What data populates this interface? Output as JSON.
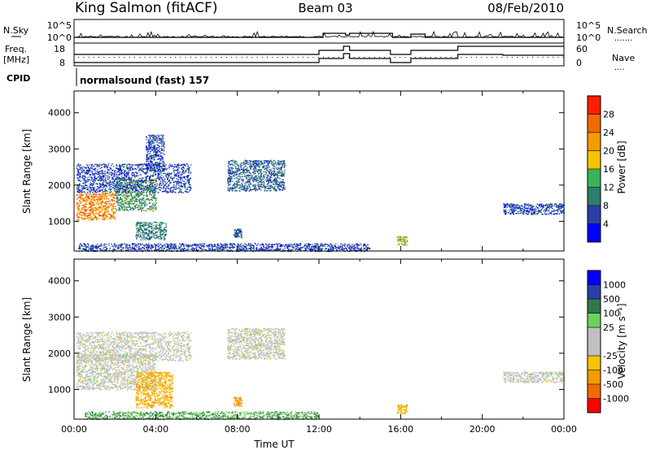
{
  "header": {
    "station": "King Salmon (fitACF)",
    "beam": "Beam 03",
    "date": "08/Feb/2010"
  },
  "top_panel": {
    "left_labels": {
      "nsky": "N.Sky",
      "freq_line1": "Freq.",
      "freq_line2": "[MHz]",
      "cpid": "CPID"
    },
    "right_labels": {
      "nsearch": "N.Search",
      "nave": "Nave"
    },
    "nsky_ticks": [
      "10^5",
      "10^0"
    ],
    "freq_ticks": [
      "18",
      "8"
    ],
    "nave_ticks": [
      "60",
      "0"
    ],
    "nsearch_ticks": [
      "10^5",
      "10^0"
    ],
    "cpid_text": "normalsound (fast) 157"
  },
  "colors": {
    "power_scale": [
      "#0000ff",
      "#2a3fa8",
      "#2e7d6e",
      "#3bb35a",
      "#f5c400",
      "#f59b00",
      "#f06a00",
      "#ff2000"
    ],
    "velocity_scale": [
      "#ff0000",
      "#f06a00",
      "#f59b00",
      "#f5c400",
      "#c0c0c0",
      "#c0c0c0",
      "#6cd35a",
      "#2f7a4a",
      "#2a3fa8",
      "#0000ff"
    ]
  },
  "chart_data": [
    {
      "type": "heatmap",
      "title": "",
      "xlabel": "",
      "ylabel": "Slant Range [km]",
      "colorbar_label": "Power [dB]",
      "colorbar_ticks": [
        "4",
        "8",
        "12",
        "16",
        "20",
        "24",
        "28"
      ],
      "x_ticks": [],
      "y_ticks": [
        "1000",
        "2000",
        "3000",
        "4000"
      ],
      "xlim": [
        0,
        24
      ],
      "ylim": [
        180,
        4600
      ],
      "features": [
        {
          "t0": 0.1,
          "t1": 2.0,
          "r0": 1050,
          "r1": 1800,
          "power": 24
        },
        {
          "t0": 2.0,
          "t1": 4.0,
          "r0": 1300,
          "r1": 2200,
          "power": 12
        },
        {
          "t0": 0.1,
          "t1": 5.7,
          "r0": 1800,
          "r1": 2600,
          "power": 6
        },
        {
          "t0": 3.5,
          "t1": 4.4,
          "r0": 2400,
          "r1": 3400,
          "power": 6
        },
        {
          "t0": 7.5,
          "t1": 10.3,
          "r0": 1850,
          "r1": 2700,
          "power": 8
        },
        {
          "t0": 3.0,
          "t1": 4.5,
          "r0": 500,
          "r1": 1000,
          "power": 10
        },
        {
          "t0": 7.8,
          "t1": 8.2,
          "r0": 550,
          "r1": 800,
          "power": 8
        },
        {
          "t0": 15.8,
          "t1": 16.3,
          "r0": 350,
          "r1": 600,
          "power": 16
        },
        {
          "t0": 21.0,
          "t1": 24.0,
          "r0": 1200,
          "r1": 1500,
          "power": 6
        },
        {
          "t0": 0.2,
          "t1": 14.5,
          "r0": 180,
          "r1": 400,
          "power": 6
        }
      ]
    },
    {
      "type": "heatmap",
      "title": "",
      "xlabel": "Time UT",
      "ylabel": "Slant Range [km]",
      "colorbar_label": "Velocity [m s⁻¹]",
      "colorbar_ticks": [
        "-1000",
        "-500",
        "-100",
        "-25",
        "25",
        "100",
        "500",
        "1000"
      ],
      "x_ticks": [
        "00:00",
        "04:00",
        "08:00",
        "12:00",
        "16:00",
        "20:00",
        "00:00"
      ],
      "y_ticks": [
        "1000",
        "2000",
        "3000",
        "4000"
      ],
      "xlim": [
        0,
        24
      ],
      "ylim": [
        180,
        4600
      ],
      "features": [
        {
          "t0": 0.1,
          "t1": 4.0,
          "r0": 1000,
          "r1": 2000,
          "velocity": 0
        },
        {
          "t0": 0.1,
          "t1": 5.7,
          "r0": 1800,
          "r1": 2600,
          "velocity": 0
        },
        {
          "t0": 7.5,
          "t1": 10.3,
          "r0": 1850,
          "r1": 2700,
          "velocity": 0
        },
        {
          "t0": 3.0,
          "t1": 4.8,
          "r0": 500,
          "r1": 1500,
          "velocity": -100
        },
        {
          "t0": 7.8,
          "t1": 8.2,
          "r0": 550,
          "r1": 800,
          "velocity": -300
        },
        {
          "t0": 15.8,
          "t1": 16.3,
          "r0": 350,
          "r1": 600,
          "velocity": -100
        },
        {
          "t0": 21.0,
          "t1": 24.0,
          "r0": 1200,
          "r1": 1500,
          "velocity": 0
        },
        {
          "t0": 0.5,
          "t1": 12.0,
          "r0": 180,
          "r1": 400,
          "velocity": 100
        }
      ]
    }
  ]
}
